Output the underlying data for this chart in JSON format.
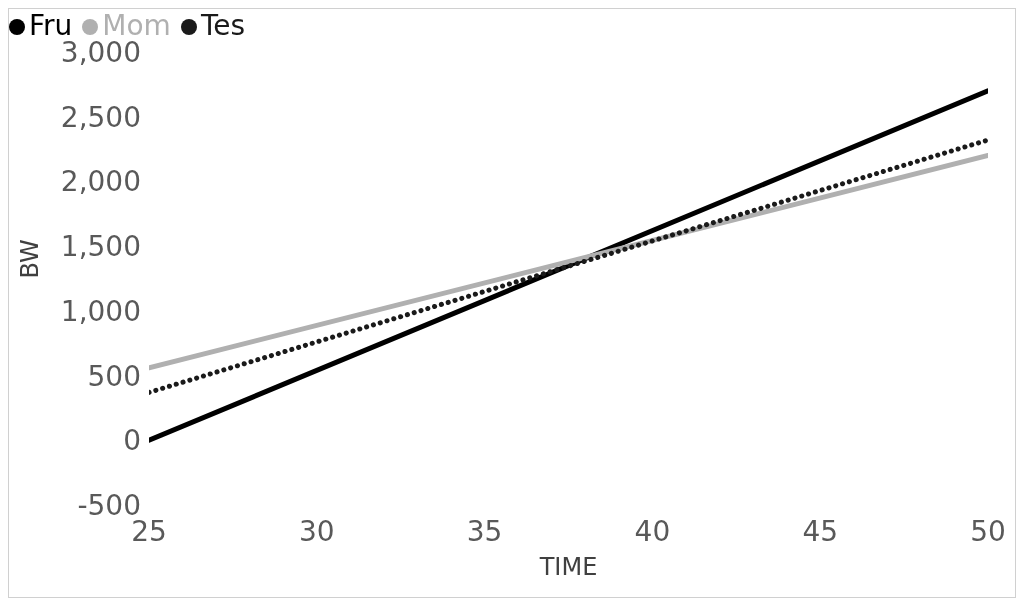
{
  "chart_data": {
    "type": "line",
    "xlabel": "TIME",
    "ylabel": "BW",
    "x": [
      25,
      50
    ],
    "xlim": [
      25,
      50
    ],
    "xticks": [
      25,
      30,
      35,
      40,
      45,
      50
    ],
    "ylim": [
      -500,
      3000
    ],
    "yticks": [
      -500,
      0,
      500,
      {
        "value": 1000,
        "label": "1,000"
      },
      {
        "value": 1500,
        "label": "1,500"
      },
      {
        "value": 2000,
        "label": "2,000"
      },
      {
        "value": 2500,
        "label": "2,500"
      },
      {
        "value": 3000,
        "label": "3,000"
      }
    ],
    "grid": false,
    "legend": "top left",
    "marker": "none",
    "series": [
      {
        "name": "Fru",
        "color": "#000000",
        "values": [
          0,
          2700
        ],
        "line_style": "solid"
      },
      {
        "name": "Mom",
        "color": "#b0b0b0",
        "values": [
          560,
          2200
        ],
        "line_style": "solid"
      },
      {
        "name": "Tes",
        "color": "#1a1a1a",
        "values": [
          370,
          2320
        ],
        "line_style": "dotted"
      }
    ]
  }
}
